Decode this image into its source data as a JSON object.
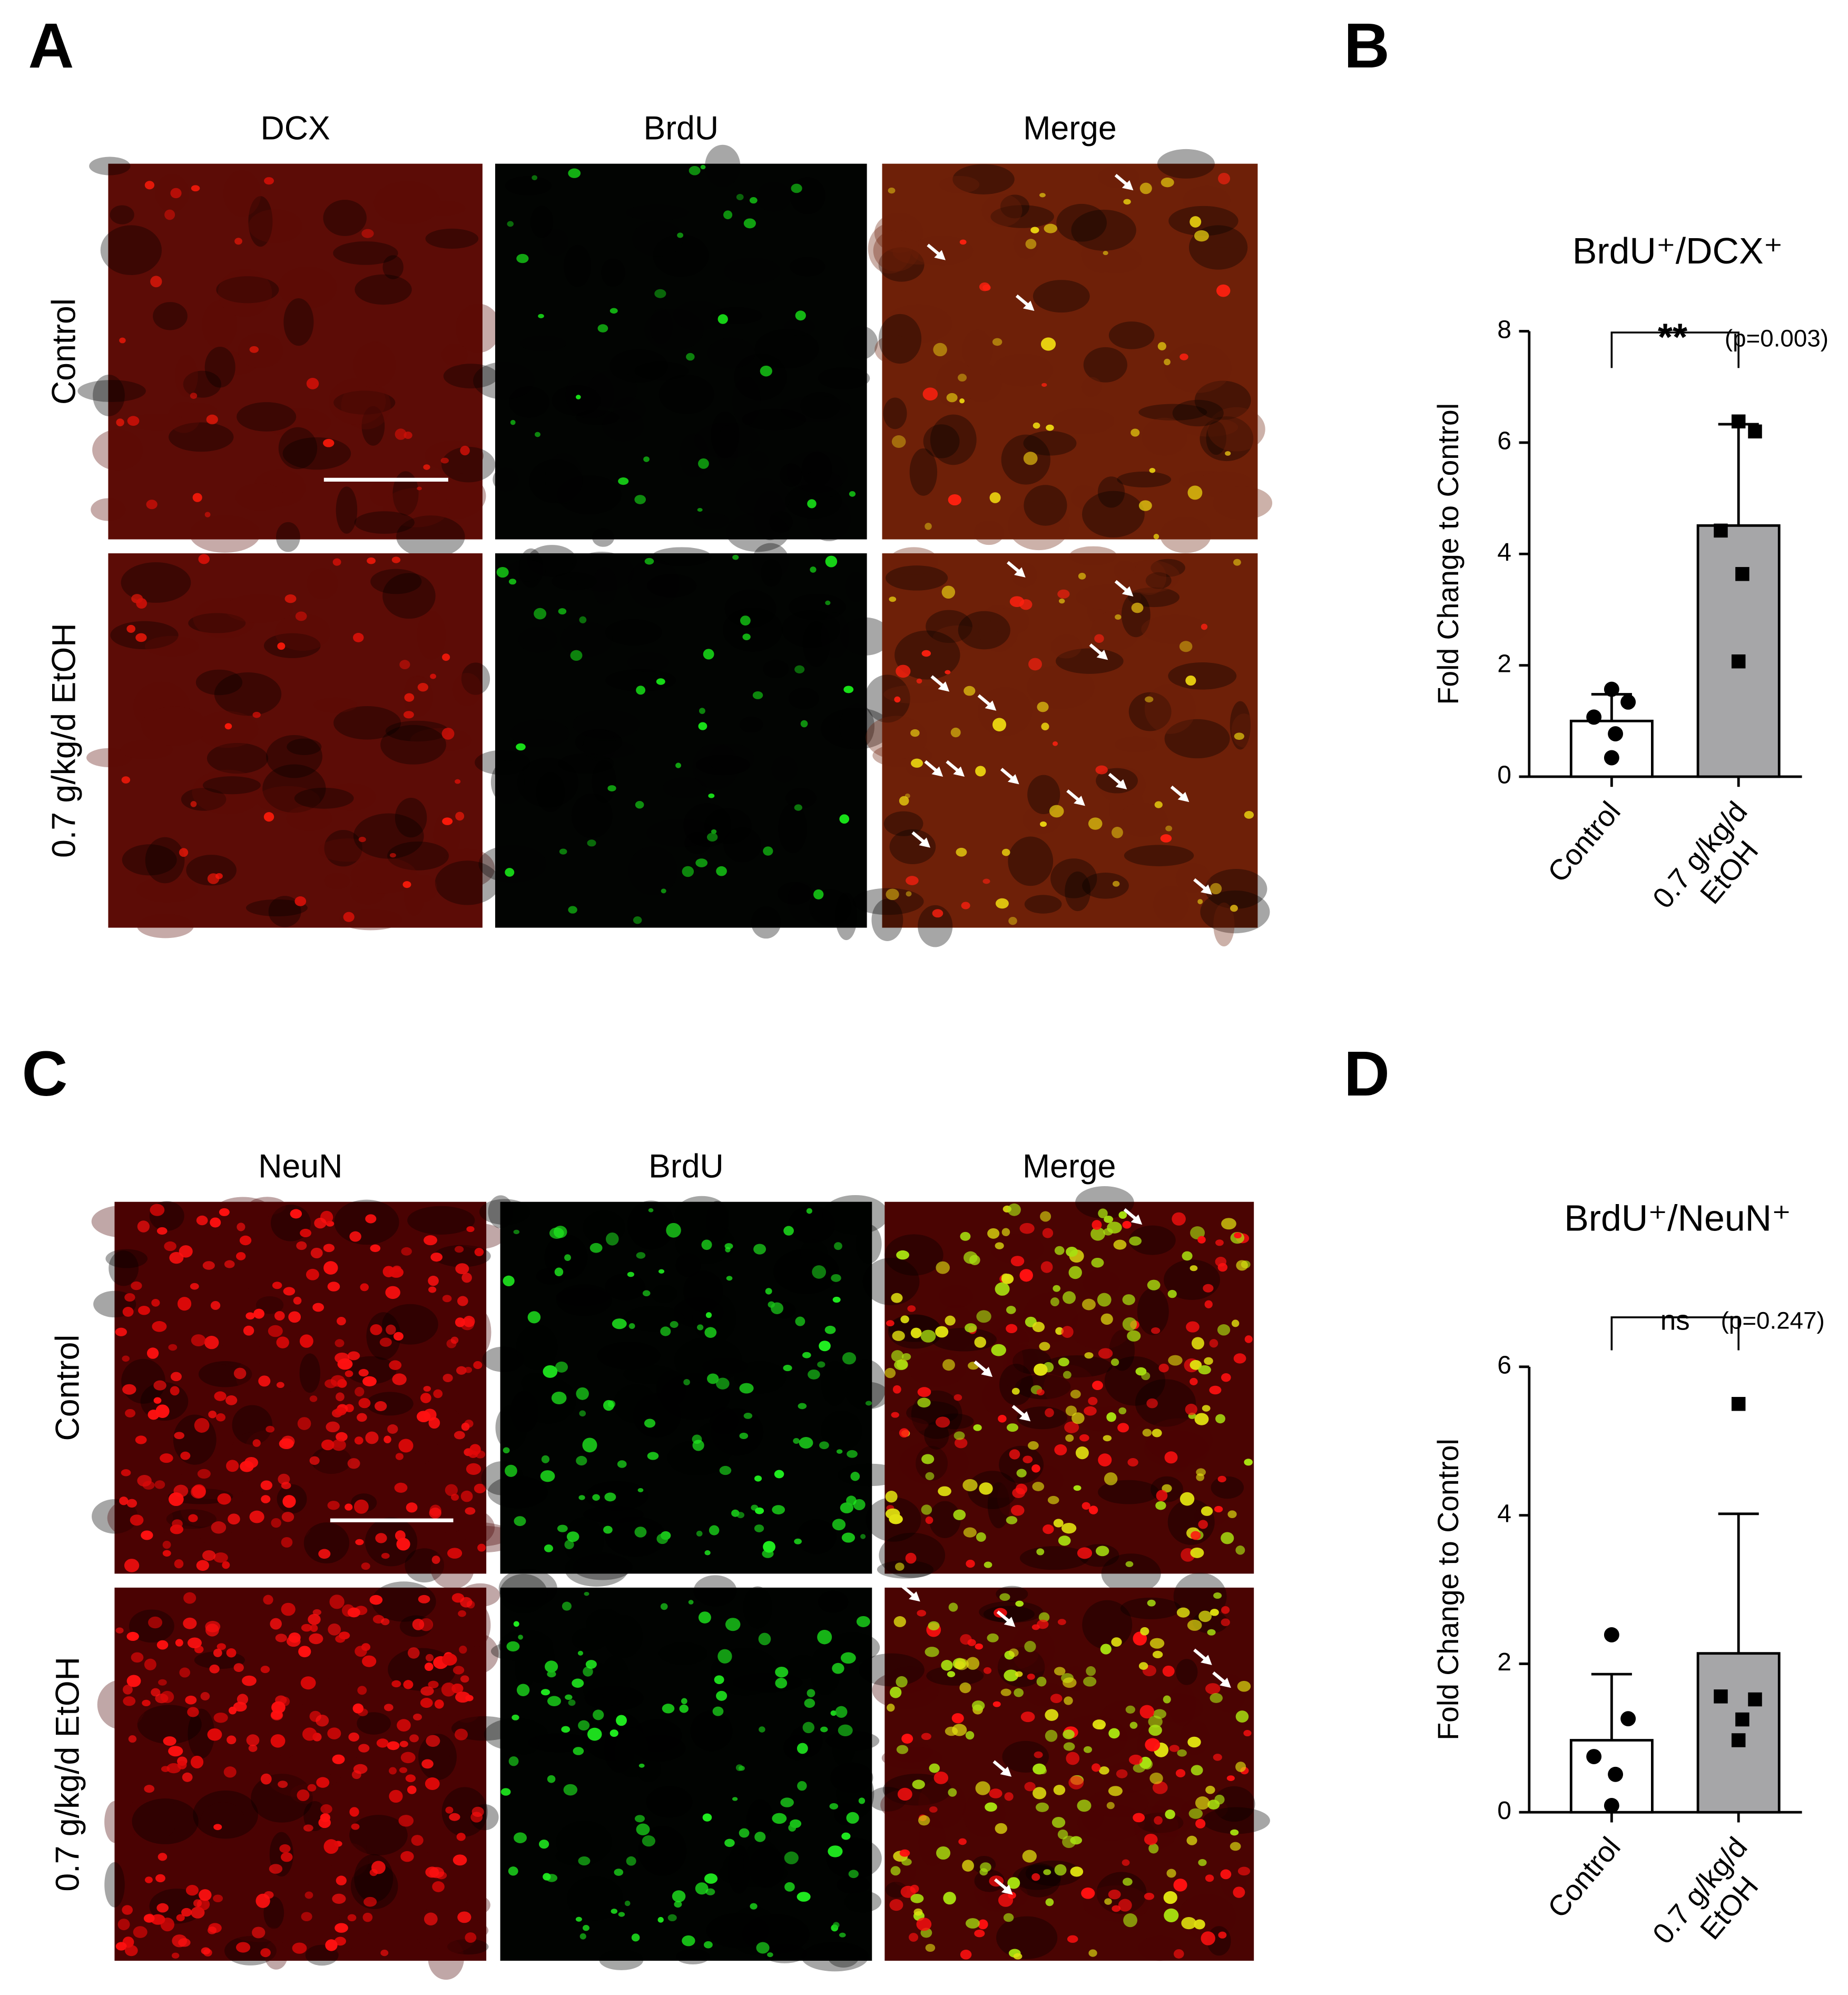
{
  "panels": [
    {
      "letter": "A",
      "columns": [
        "DCX",
        "BrdU",
        "Merge"
      ],
      "rows": [
        "Control",
        "0.7 g/kg/d EtOH"
      ]
    },
    {
      "letter": "C",
      "columns": [
        "NeuN",
        "BrdU",
        "Merge"
      ],
      "rows": [
        "Control",
        "0.7 g/kg/d EtOH"
      ]
    }
  ],
  "chart_data": [
    {
      "type": "bar",
      "panel_label": "B",
      "title": "BrdU⁺/DCX⁺",
      "ylabel": "Fold Change to Control",
      "categories": [
        "Control",
        "0.7 g/kg/d EtOH"
      ],
      "values": [
        1.0,
        4.51
      ],
      "errors": [
        0.48,
        1.82
      ],
      "colors": [
        "#ffffff",
        "#a6a6a8"
      ],
      "markers": [
        "circle",
        "square"
      ],
      "points": [
        [
          1.57,
          1.34,
          1.07,
          0.77,
          0.34
        ],
        [
          6.38,
          6.2,
          4.42,
          3.64,
          2.07
        ]
      ],
      "ylim": [
        0,
        8
      ],
      "yticks": [
        0,
        2,
        4,
        6,
        8
      ],
      "significance": "**",
      "p_label": "(p=0.003)"
    },
    {
      "type": "bar",
      "panel_label": "D",
      "title": "BrdU⁺/NeuN⁺",
      "ylabel": "Fold Change to Control",
      "categories": [
        "Control",
        "0.7 g/kg/d EtOH"
      ],
      "values": [
        0.97,
        2.14
      ],
      "errors": [
        0.89,
        1.88
      ],
      "colors": [
        "#ffffff",
        "#a6a6a8"
      ],
      "markers": [
        "circle",
        "square"
      ],
      "points": [
        [
          2.39,
          1.26,
          0.75,
          0.51,
          0.09
        ],
        [
          5.5,
          1.52,
          1.56,
          1.25,
          0.97
        ]
      ],
      "ylim": [
        0,
        6
      ],
      "yticks": [
        0,
        2,
        4,
        6
      ],
      "significance": "ns",
      "p_label": "(p=0.247)"
    }
  ]
}
